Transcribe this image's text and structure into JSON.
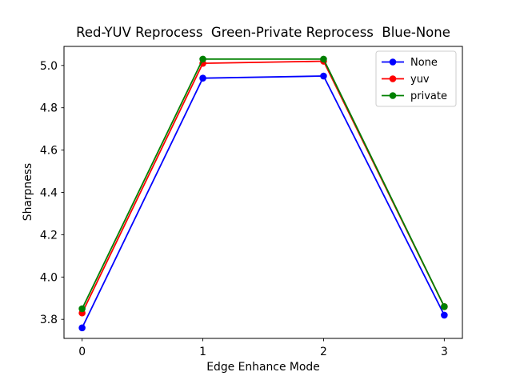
{
  "figure": {
    "background": "#ffffff",
    "frame_color": "#000000",
    "tick_color": "#000000",
    "text_color": "#000000"
  },
  "chart_data": {
    "type": "line",
    "title": "Red-YUV Reprocess  Green-Private Reprocess  Blue-None",
    "xlabel": "Edge Enhance Mode",
    "ylabel": "Sharpness",
    "x": [
      0,
      1,
      2,
      3
    ],
    "series": [
      {
        "name": "None",
        "color": "#0000ff",
        "values": [
          3.76,
          4.94,
          4.95,
          3.82
        ]
      },
      {
        "name": "yuv",
        "color": "#ff0000",
        "values": [
          3.83,
          5.01,
          5.02,
          3.86
        ]
      },
      {
        "name": "private",
        "color": "#008000",
        "values": [
          3.85,
          5.03,
          5.03,
          3.86
        ]
      }
    ],
    "xticks": [
      "0",
      "1",
      "2",
      "3"
    ],
    "xtick_values": [
      0,
      1,
      2,
      3
    ],
    "yticks": [
      "3.8",
      "4.0",
      "4.2",
      "4.4",
      "4.6",
      "4.8",
      "5.0"
    ],
    "ytick_values": [
      3.8,
      4.0,
      4.2,
      4.4,
      4.6,
      4.8,
      5.0
    ],
    "xlim": [
      -0.15,
      3.15
    ],
    "ylim": [
      3.71,
      5.09
    ],
    "grid": false,
    "marker": "circle",
    "legend_position": "upper right",
    "legend_border_color": "#cccccc",
    "legend_background": "#ffffff"
  }
}
